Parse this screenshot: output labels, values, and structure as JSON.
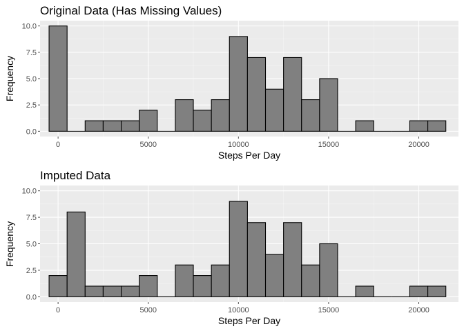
{
  "colors": {
    "panel_bg": "#ebebeb",
    "grid_major": "#ffffff",
    "bar_fill": "#808080",
    "bar_stroke": "#000000",
    "tick": "#4d4d4d"
  },
  "chart_data": [
    {
      "type": "bar",
      "title": "Original Data (Has Missing Values)",
      "xlabel": "Steps Per Day",
      "ylabel": "Frequency",
      "xlim": [
        -1000,
        22200
      ],
      "ylim": [
        -0.5,
        10.5
      ],
      "binwidth": 1000,
      "grid": true,
      "xticks": [
        0,
        5000,
        10000,
        15000,
        20000
      ],
      "yticks": [
        0,
        2.5,
        5,
        7.5,
        10
      ],
      "xtick_labels": [
        "0",
        "5000",
        "10000",
        "15000",
        "20000"
      ],
      "ytick_labels": [
        "0.0",
        "2.5",
        "5.0",
        "7.5",
        "10.0"
      ],
      "bins": [
        0,
        1000,
        2000,
        3000,
        4000,
        5000,
        6000,
        7000,
        8000,
        9000,
        10000,
        11000,
        12000,
        13000,
        14000,
        15000,
        16000,
        17000,
        18000,
        19000,
        20000,
        21000
      ],
      "values": [
        10,
        0,
        1,
        1,
        1,
        2,
        0,
        3,
        2,
        3,
        9,
        7,
        4,
        7,
        3,
        5,
        0,
        1,
        0,
        0,
        1,
        1
      ]
    },
    {
      "type": "bar",
      "title": "Imputed Data",
      "xlabel": "Steps Per Day",
      "ylabel": "Frequency",
      "xlim": [
        -1000,
        22200
      ],
      "ylim": [
        -0.5,
        10.5
      ],
      "binwidth": 1000,
      "grid": true,
      "xticks": [
        0,
        5000,
        10000,
        15000,
        20000
      ],
      "yticks": [
        0,
        2.5,
        5,
        7.5,
        10
      ],
      "xtick_labels": [
        "0",
        "5000",
        "10000",
        "15000",
        "20000"
      ],
      "ytick_labels": [
        "0.0",
        "2.5",
        "5.0",
        "7.5",
        "10.0"
      ],
      "bins": [
        0,
        1000,
        2000,
        3000,
        4000,
        5000,
        6000,
        7000,
        8000,
        9000,
        10000,
        11000,
        12000,
        13000,
        14000,
        15000,
        16000,
        17000,
        18000,
        19000,
        20000,
        21000
      ],
      "values": [
        2,
        8,
        1,
        1,
        1,
        2,
        0,
        3,
        2,
        3,
        9,
        7,
        4,
        7,
        3,
        5,
        0,
        1,
        0,
        0,
        1,
        1
      ]
    }
  ]
}
